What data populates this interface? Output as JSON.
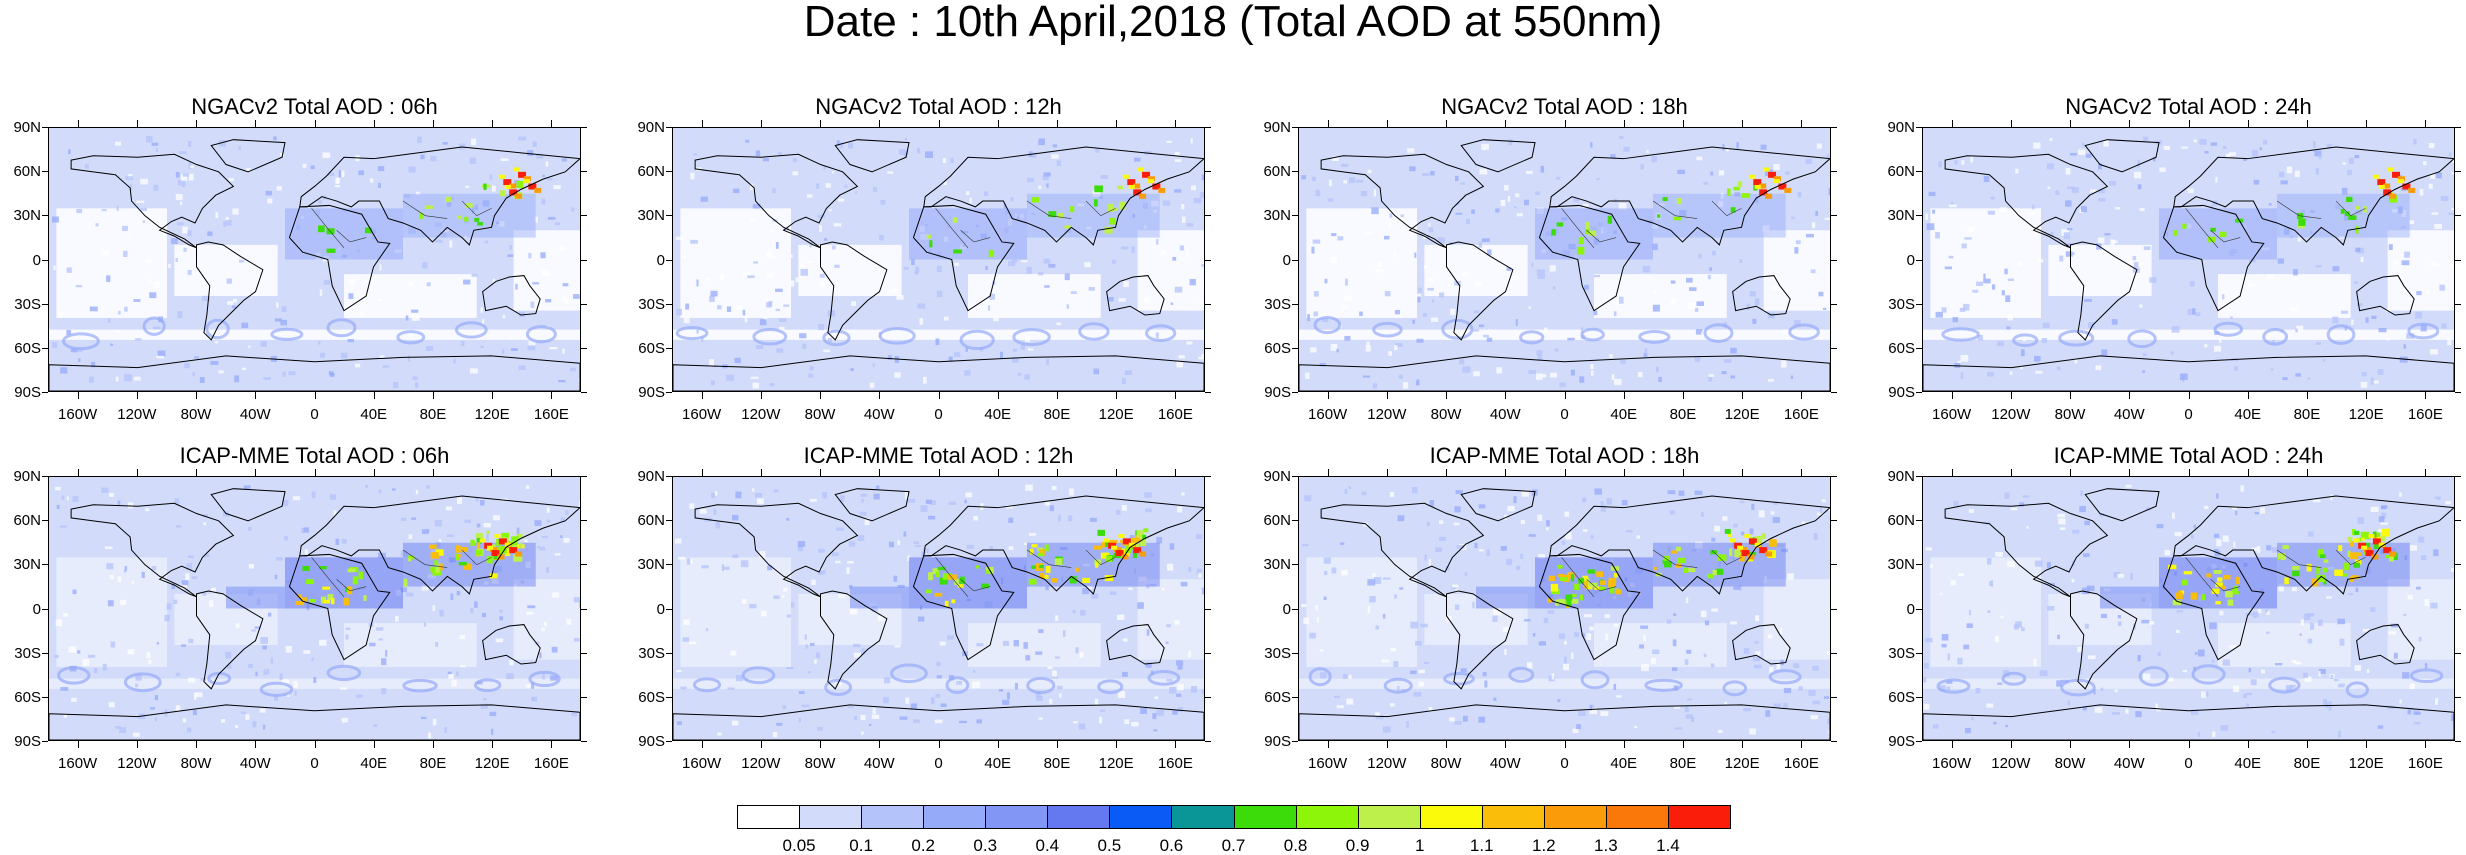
{
  "title": "Date : 10th April,2018 (Total AOD at 550nm)",
  "panels": [
    {
      "title": "NGACv2 Total AOD : 06h",
      "model": "NGACv2",
      "hour": 6
    },
    {
      "title": "NGACv2 Total AOD : 12h",
      "model": "NGACv2",
      "hour": 12
    },
    {
      "title": "NGACv2 Total AOD : 18h",
      "model": "NGACv2",
      "hour": 18
    },
    {
      "title": "NGACv2 Total AOD : 24h",
      "model": "NGACv2",
      "hour": 24
    },
    {
      "title": "ICAP-MME Total AOD : 06h",
      "model": "ICAP-MME",
      "hour": 6
    },
    {
      "title": "ICAP-MME Total AOD : 12h",
      "model": "ICAP-MME",
      "hour": 12
    },
    {
      "title": "ICAP-MME Total AOD : 18h",
      "model": "ICAP-MME",
      "hour": 18
    },
    {
      "title": "ICAP-MME Total AOD : 24h",
      "model": "ICAP-MME",
      "hour": 24
    }
  ],
  "lat_labels": [
    "90N",
    "60N",
    "30N",
    "0",
    "30S",
    "60S",
    "90S"
  ],
  "lon_labels": [
    "160W",
    "120W",
    "80W",
    "40W",
    "0",
    "40E",
    "80E",
    "120E",
    "160E"
  ],
  "colorbar": {
    "colors": [
      "#ffffff",
      "#d2dcfa",
      "#b4c3fa",
      "#96aafa",
      "#8296f5",
      "#6478f0",
      "#0a5af5",
      "#0a9696",
      "#3cdc0a",
      "#8cf50a",
      "#bef04b",
      "#fafa0a",
      "#fabe0a",
      "#fa9b0a",
      "#fa780a",
      "#fa1e0a"
    ],
    "labels": [
      "0.05",
      "0.1",
      "0.2",
      "0.3",
      "0.4",
      "0.5",
      "0.6",
      "0.7",
      "0.8",
      "0.9",
      "1",
      "1.1",
      "1.2",
      "1.3",
      "1.4"
    ]
  }
}
